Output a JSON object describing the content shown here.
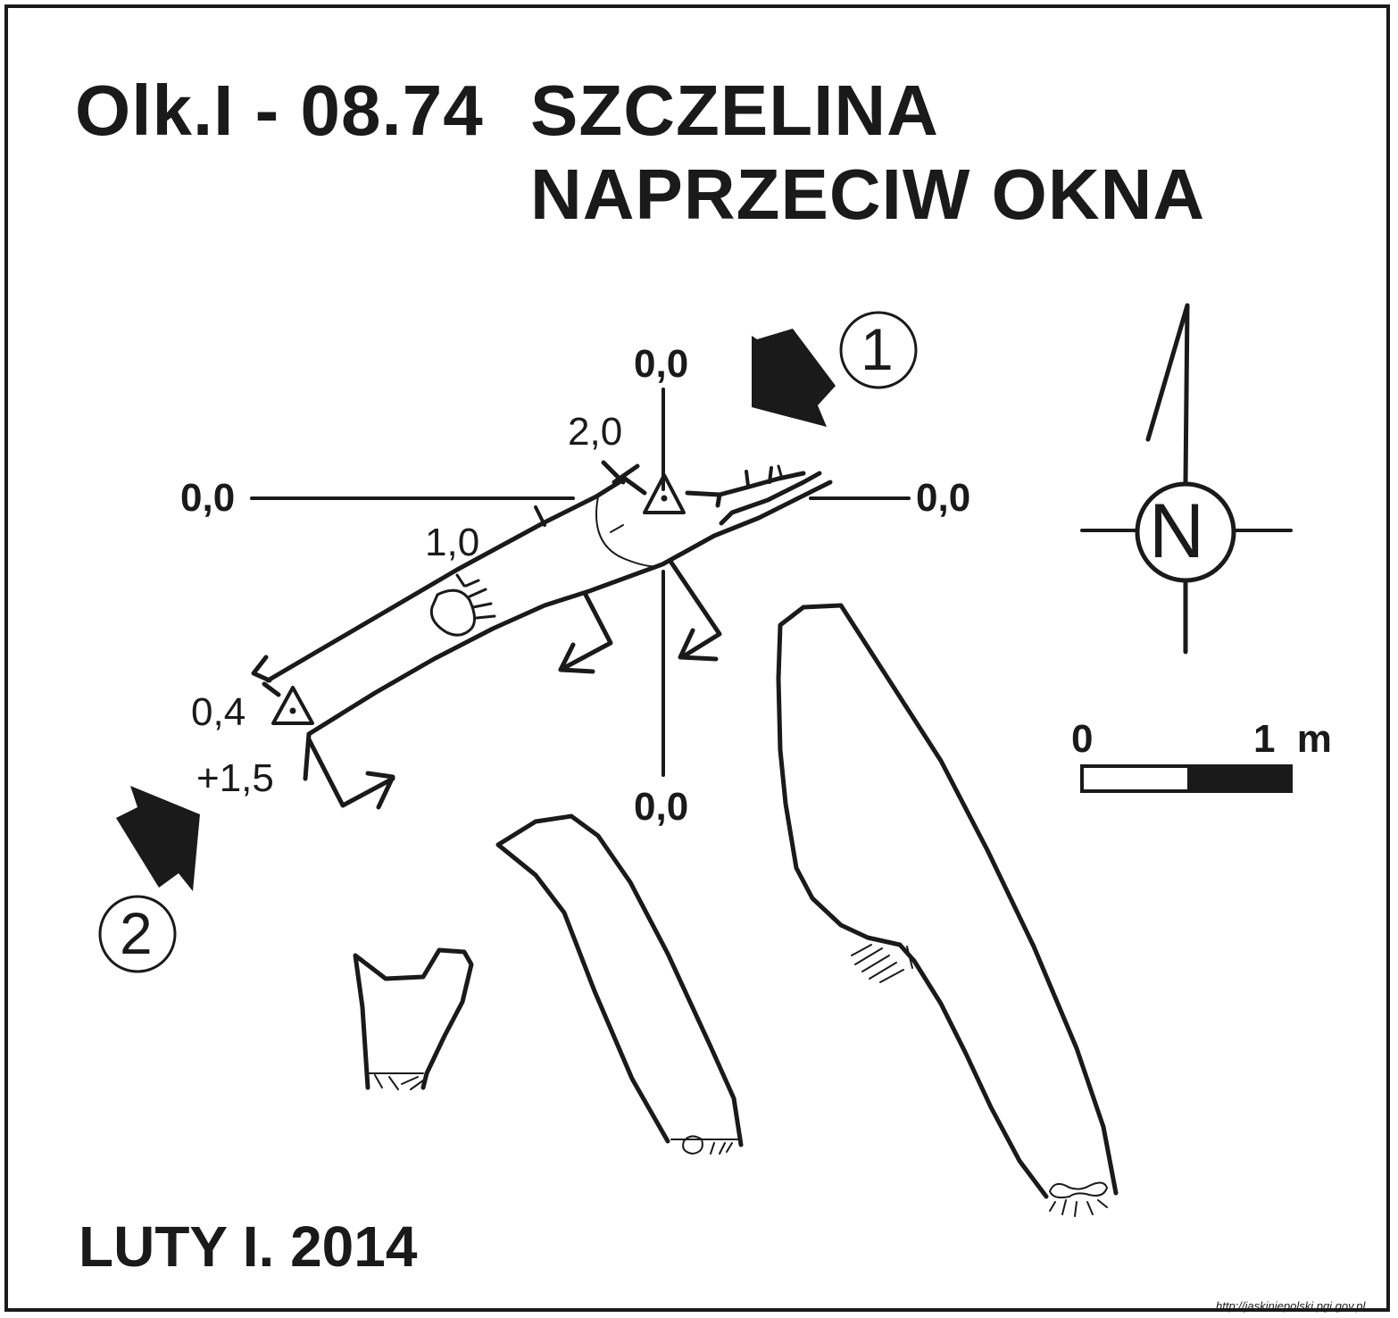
{
  "title": {
    "code": "Olk.I - 08.74",
    "name_line1": "SZCZELINA",
    "name_line2": "NAPRZECIW OKNA"
  },
  "date": "LUTY I. 2014",
  "credit": "http://jaskiniepolski.pgi.gov.pl",
  "section_lines": {
    "top": "0,0",
    "bottom": "0,0",
    "left": "0,0",
    "right": "0,0"
  },
  "depth_labels": {
    "entrance_upper": "2,0",
    "mid": "1,0",
    "entrance_lower": "0,4",
    "ceiling": "+1,5"
  },
  "entrance_markers": {
    "one": "1",
    "two": "2"
  },
  "north": {
    "label": "N"
  },
  "scale_bar": {
    "start_label": "0",
    "end_label": "1 m"
  },
  "colors": {
    "ink": "#1a1a1a",
    "paper": "#ffffff"
  }
}
